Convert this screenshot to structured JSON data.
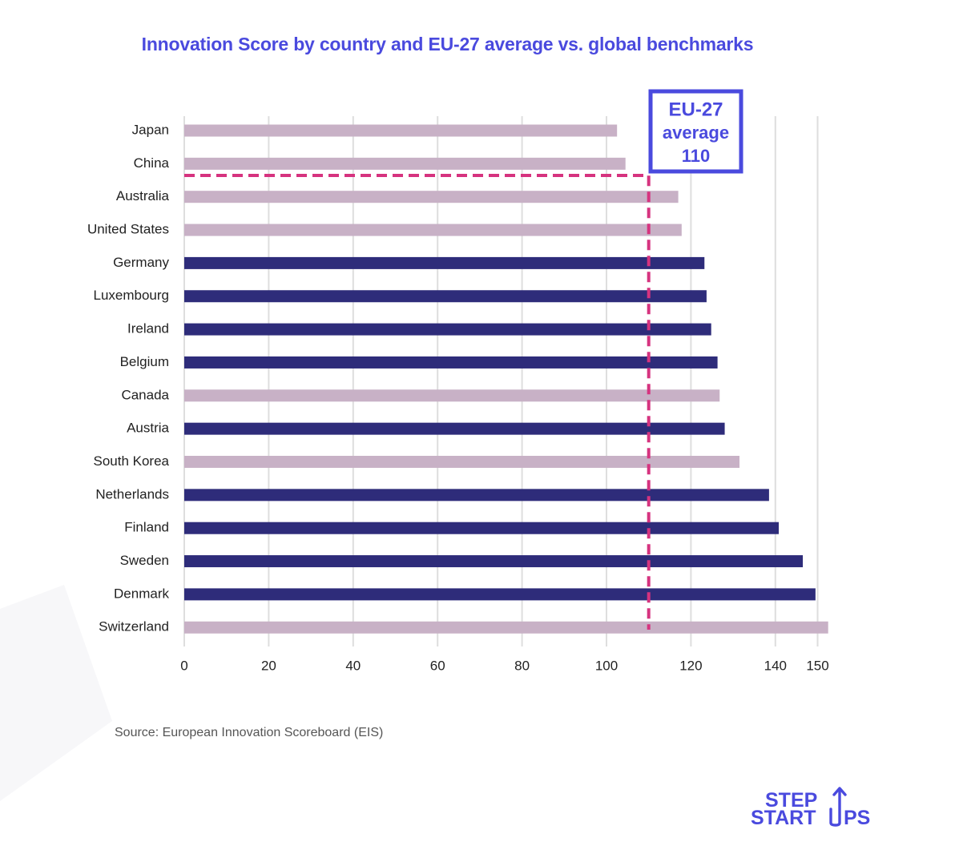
{
  "title": "Innovation Score by country and EU-27 average vs. global benchmarks",
  "source": "Source: European Innovation Scoreboard (EIS)",
  "logo": {
    "line1": "STEP",
    "line2_a": "START",
    "line2_b": "PS",
    "icon": "up-arrow-icon"
  },
  "colors": {
    "eu": "#2e2c7a",
    "non_eu": "#c8b1c6",
    "reference": "#d6337f",
    "title": "#4a4ade",
    "annotation": "#4a4ade"
  },
  "chart_data": {
    "type": "bar",
    "orientation": "horizontal",
    "title": "Innovation Score by country and EU-27 average vs. global benchmarks",
    "xlabel": "",
    "ylabel": "",
    "xlim": [
      0,
      160
    ],
    "xticks": [
      0,
      20,
      40,
      60,
      80,
      100,
      120,
      140,
      150
    ],
    "grid": true,
    "categories": [
      "Japan",
      "China",
      "Australia",
      "United States",
      "Germany",
      "Luxembourg",
      "Ireland",
      "Belgium",
      "Canada",
      "Austria",
      "South Korea",
      "Netherlands",
      "Finland",
      "Sweden",
      "Denmark",
      "Switzerland"
    ],
    "values": [
      102.5,
      104.5,
      117,
      117.8,
      123.2,
      123.7,
      124.8,
      126.3,
      126.8,
      128,
      131.5,
      138.5,
      140.8,
      146.5,
      149.5,
      152.5
    ],
    "group": [
      "non-EU",
      "non-EU",
      "non-EU",
      "non-EU",
      "EU",
      "EU",
      "EU",
      "EU",
      "non-EU",
      "EU",
      "non-EU",
      "EU",
      "EU",
      "EU",
      "EU",
      "non-EU"
    ],
    "reference_line": {
      "value": 110,
      "label_lines": [
        "EU-27",
        "average",
        "110"
      ]
    }
  }
}
